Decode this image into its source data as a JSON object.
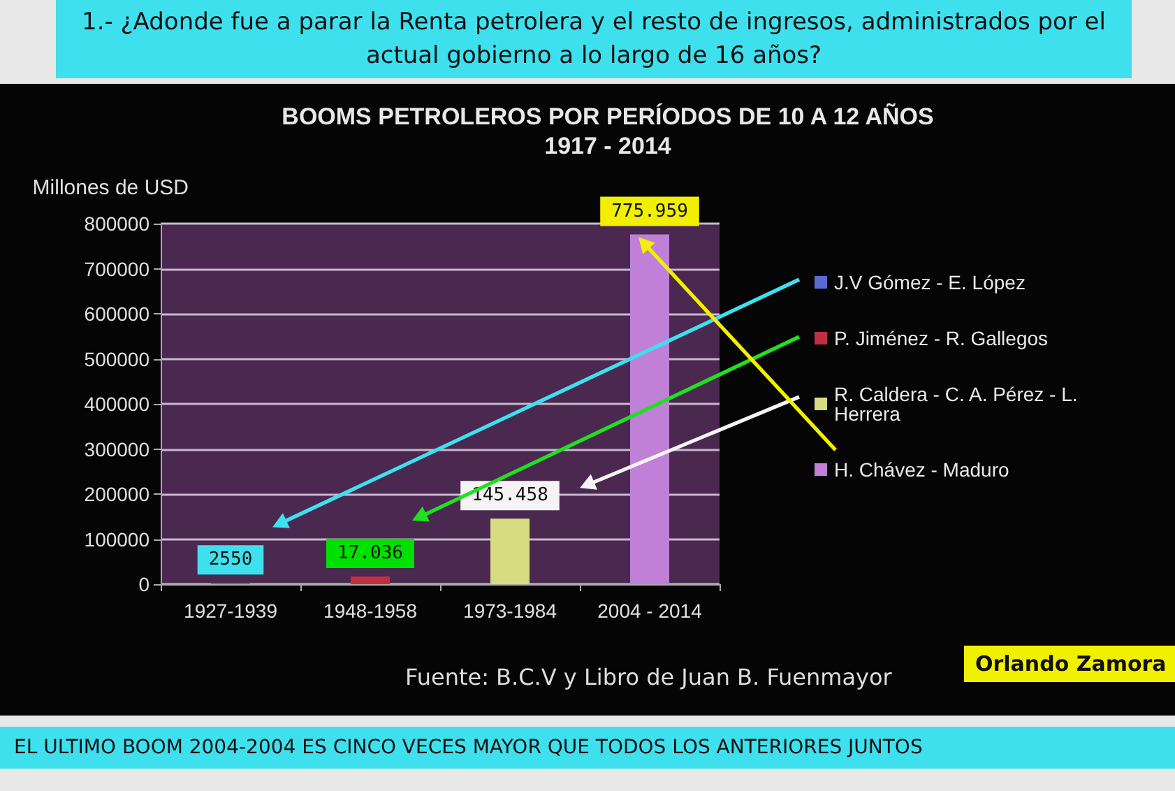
{
  "chart_data": {
    "type": "bar",
    "title": "BOOMS PETROLEROS POR PERÍODOS DE 10 A 12 AÑOS",
    "subtitle": "1917 - 2014",
    "ylabel": "Millones de USD",
    "categories": [
      "1927-1939",
      "1948-1958",
      "1973-1984",
      "2004 - 2014"
    ],
    "series": [
      {
        "name": "J.V Gómez - E. López",
        "color": "#5a6ad0",
        "values": [
          2550,
          null,
          null,
          null
        ],
        "value_labels": [
          "2550",
          null,
          null,
          null
        ]
      },
      {
        "name": "P. Jiménez - R. Gallegos",
        "color": "#c03040",
        "values": [
          null,
          17036,
          null,
          null
        ],
        "value_labels": [
          null,
          "17.036",
          null,
          null
        ]
      },
      {
        "name": "R. Caldera - C. A. Pérez - L. Herrera",
        "color": "#d8dc80",
        "values": [
          null,
          null,
          145458,
          null
        ],
        "value_labels": [
          null,
          null,
          "145.458",
          null
        ]
      },
      {
        "name": "H. Chávez - Maduro",
        "color": "#c080d8",
        "values": [
          null,
          null,
          null,
          775959
        ],
        "value_labels": [
          null,
          null,
          null,
          "775.959"
        ]
      }
    ],
    "stacked": true,
    "ylim": [
      0,
      800000
    ],
    "yticks": [
      0,
      100000,
      200000,
      300000,
      400000,
      500000,
      600000,
      700000,
      800000
    ],
    "grid": "y",
    "legend": "right",
    "annotations": [
      "1.- ¿Adonde fue a parar la Renta petrolera y el resto de ingresos, administrados por el actual gobierno a lo largo de 16 años?",
      "Fuente: B.C.V y Libro de Juan B. Fuenmayor",
      "Orlando Zamora",
      "EL ULTIMO BOOM 2004-2004 ES CINCO VECES MAYOR QUE TODOS LOS ANTERIORES JUNTOS"
    ]
  }
}
